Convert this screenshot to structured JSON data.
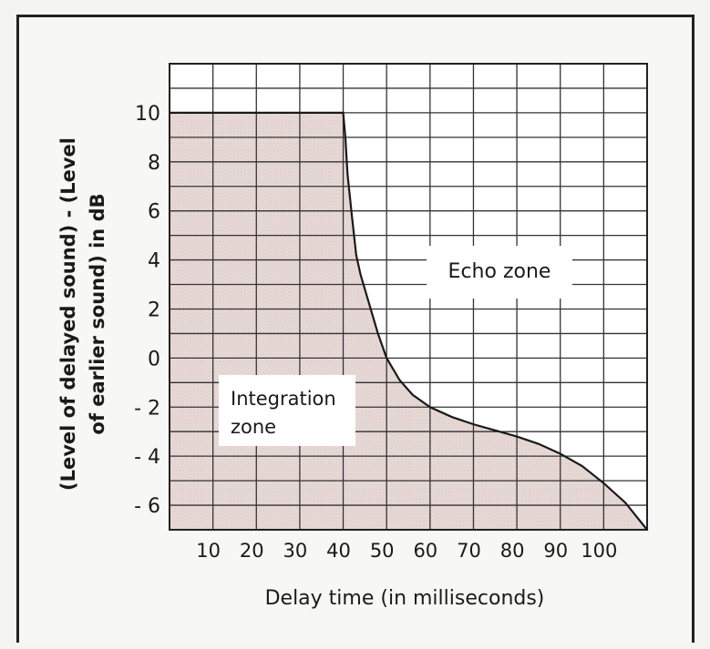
{
  "chart_data": {
    "type": "area",
    "title": "",
    "xlabel": "Delay time (in milliseconds)",
    "ylabel_line1": "(Level of delayed sound) - (Level",
    "ylabel_line2": "of earlier sound) in dB",
    "xlim": [
      0,
      110
    ],
    "ylim": [
      -7,
      12
    ],
    "grid": true,
    "x_ticks": [
      10,
      20,
      30,
      40,
      50,
      60,
      70,
      80,
      90,
      100
    ],
    "x_tick_labels": [
      "10",
      "20",
      "30",
      "40",
      "50",
      "60",
      "70",
      "80",
      "90",
      "100"
    ],
    "y_ticks": [
      10,
      8,
      6,
      4,
      2,
      0,
      -2,
      -4,
      -6
    ],
    "y_tick_labels": [
      "10",
      "8",
      "6",
      "4",
      "2",
      "0",
      "- 2",
      "- 4",
      "- 6"
    ],
    "series": [
      {
        "x": [
          0,
          40,
          40.5,
          41,
          42,
          43,
          44,
          46,
          48,
          50,
          53,
          56,
          60,
          65,
          70,
          75,
          80,
          85,
          90,
          95,
          100,
          105,
          110
        ],
        "y": [
          10,
          10,
          9.0,
          7.5,
          5.8,
          4.2,
          3.4,
          2.2,
          1.0,
          0.0,
          -0.9,
          -1.5,
          -2.0,
          -2.4,
          -2.7,
          -2.95,
          -3.2,
          -3.5,
          -3.9,
          -4.4,
          -5.1,
          -5.9,
          -7.0
        ]
      }
    ],
    "annotations": [
      "Echo zone",
      "Integration\nzone"
    ],
    "region_colors": {
      "integration": "#e7d9d6",
      "echo": "#ffffff",
      "grid": "#333333",
      "curve": "#1a1a1a"
    }
  }
}
